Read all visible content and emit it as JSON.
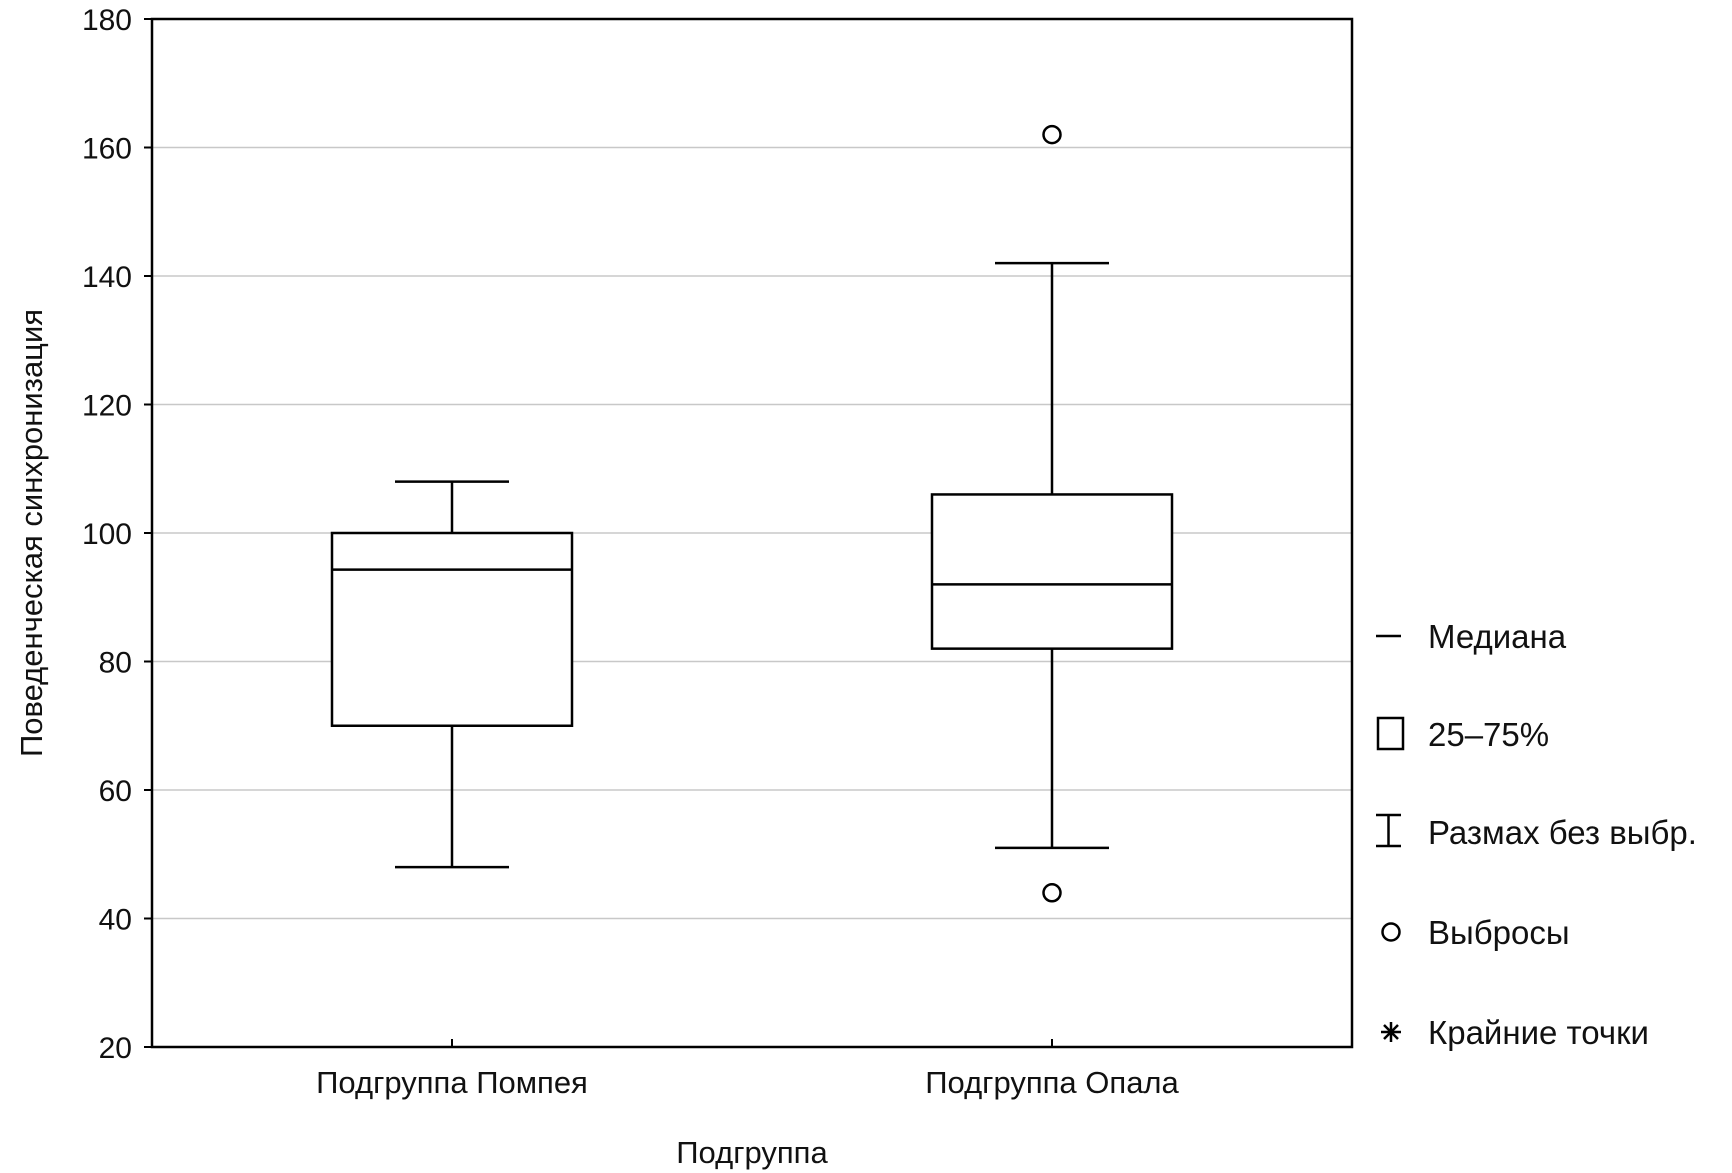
{
  "chart_data": {
    "type": "box",
    "xlabel": "Подгруппа",
    "ylabel": "Поведенческая синхронизация",
    "ylim": [
      20,
      180
    ],
    "yticks": [
      20,
      40,
      60,
      80,
      100,
      120,
      140,
      160,
      180
    ],
    "grid": true,
    "legend_position": "right",
    "categories": [
      "Подгруппа Помпея",
      "Подгруппа Опала"
    ],
    "boxes": [
      {
        "category": "Подгруппа Помпея",
        "whisker_low": 48,
        "q1": 70,
        "median": 94.3,
        "q3": 100,
        "whisker_high": 108,
        "outliers": [],
        "extremes": []
      },
      {
        "category": "Подгруппа Опала",
        "whisker_low": 51,
        "q1": 82,
        "median": 92,
        "q3": 106,
        "whisker_high": 142,
        "outliers": [
          162,
          44
        ],
        "extremes": []
      }
    ],
    "legend": [
      {
        "symbol": "median-line",
        "label": "Медиана"
      },
      {
        "symbol": "box",
        "label": "25–75%"
      },
      {
        "symbol": "whisker",
        "label": "Размах без выбр."
      },
      {
        "symbol": "circle",
        "label": "Выбросы"
      },
      {
        "symbol": "asterisk",
        "label": "Крайние точки"
      }
    ]
  }
}
